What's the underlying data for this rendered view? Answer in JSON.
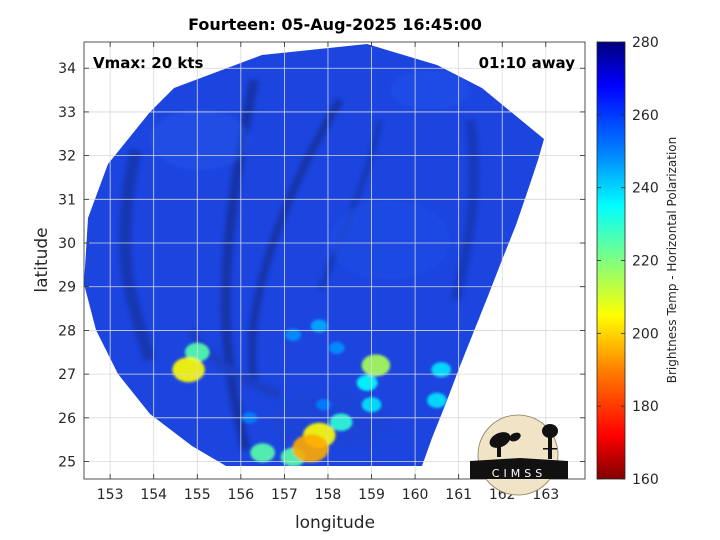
{
  "chart_data": {
    "type": "heatmap",
    "title": "Fourteen: 05-Aug-2025 16:45:00",
    "xlabel": "longitude",
    "ylabel": "latitude",
    "xlim": [
      152.4,
      163.9
    ],
    "ylim": [
      24.6,
      34.6
    ],
    "xticks": [
      "153",
      "154",
      "155",
      "156",
      "157",
      "158",
      "159",
      "160",
      "161",
      "162",
      "163"
    ],
    "yticks": [
      "25",
      "26",
      "27",
      "28",
      "29",
      "30",
      "31",
      "32",
      "33",
      "34"
    ],
    "grid": true,
    "annotations": {
      "left": "Vmax: 20 kts",
      "right": "01:10 away"
    },
    "colorbar": {
      "label": "Brightness Temp - Horizontal Polarization",
      "min": 160,
      "max": 280,
      "ticks": [
        "160",
        "180",
        "200",
        "220",
        "240",
        "260",
        "280"
      ]
    },
    "swath_center": {
      "lon": 157.9,
      "lat": 29.55
    },
    "features": [
      {
        "lon": 157.6,
        "lat": 25.3,
        "value": 195
      },
      {
        "lon": 157.8,
        "lat": 25.6,
        "value": 205
      },
      {
        "lon": 157.2,
        "lat": 25.1,
        "value": 225
      },
      {
        "lon": 158.3,
        "lat": 25.9,
        "value": 230
      },
      {
        "lon": 159.1,
        "lat": 27.2,
        "value": 215
      },
      {
        "lon": 158.9,
        "lat": 26.8,
        "value": 235
      },
      {
        "lon": 159.0,
        "lat": 26.3,
        "value": 238
      },
      {
        "lon": 154.8,
        "lat": 27.1,
        "value": 205
      },
      {
        "lon": 155.0,
        "lat": 27.5,
        "value": 225
      },
      {
        "lon": 156.5,
        "lat": 25.2,
        "value": 225
      },
      {
        "lon": 160.6,
        "lat": 27.1,
        "value": 238
      },
      {
        "lon": 160.5,
        "lat": 26.4,
        "value": 238
      },
      {
        "lon": 157.8,
        "lat": 28.1,
        "value": 245
      },
      {
        "lon": 157.2,
        "lat": 27.9,
        "value": 248
      },
      {
        "lon": 158.2,
        "lat": 27.6,
        "value": 248
      },
      {
        "lon": 156.2,
        "lat": 26.0,
        "value": 250
      },
      {
        "lon": 157.9,
        "lat": 26.3,
        "value": 250
      }
    ]
  },
  "logo": {
    "text": "CIMSS"
  }
}
